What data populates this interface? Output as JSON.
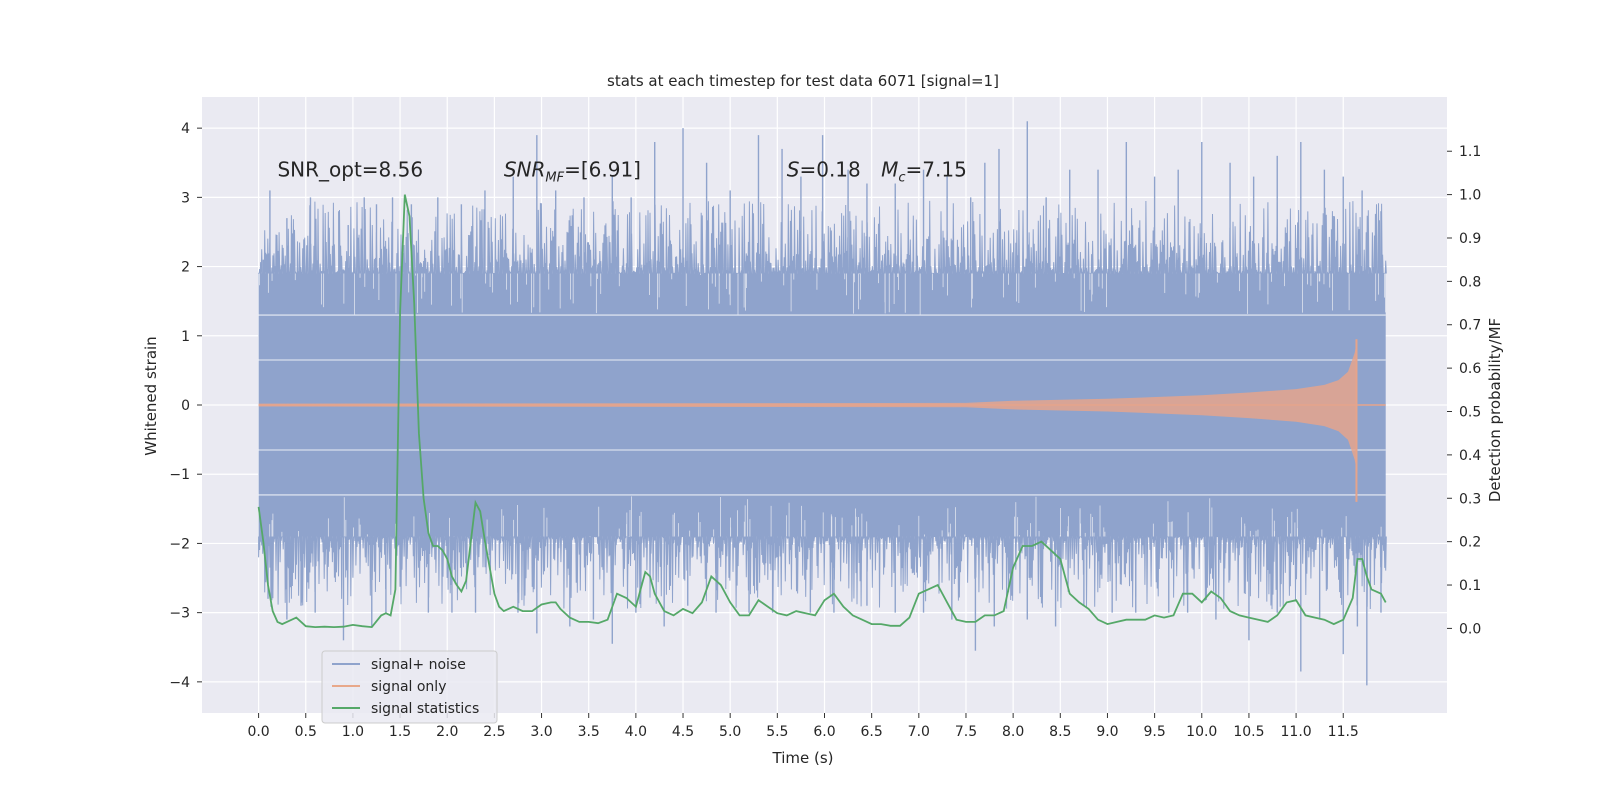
{
  "chart_data": {
    "type": "line",
    "title": "stats at each timestep for test data 6071 [signal=1]",
    "xlabel": "Time (s)",
    "ylabel_left": "Whitened strain",
    "ylabel_right": "Detection probability/MF",
    "xlim": [
      -0.6,
      12.6
    ],
    "ylim_left": [
      -4.45,
      4.45
    ],
    "ylim_right": [
      -0.195,
      1.225
    ],
    "x_ticks": [
      0.0,
      0.5,
      1.0,
      1.5,
      2.0,
      2.5,
      3.0,
      3.5,
      4.0,
      4.5,
      5.0,
      5.5,
      6.0,
      6.5,
      7.0,
      7.5,
      8.0,
      8.5,
      9.0,
      9.5,
      10.0,
      10.5,
      11.0,
      11.5
    ],
    "x_tick_labels": [
      "0.0",
      "0.5",
      "1.0",
      "1.5",
      "2.0",
      "2.5",
      "3.0",
      "3.5",
      "4.0",
      "4.5",
      "5.0",
      "5.5",
      "6.0",
      "6.5",
      "7.0",
      "7.5",
      "8.0",
      "8.5",
      "9.0",
      "9.5",
      "10.0",
      "10.5",
      "11.0",
      "11.5"
    ],
    "y_left_ticks": [
      -4,
      -3,
      -2,
      -1,
      0,
      1,
      2,
      3,
      4
    ],
    "y_left_tick_labels": [
      "−4",
      "−3",
      "−2",
      "−1",
      "0",
      "1",
      "2",
      "3",
      "4"
    ],
    "y_right_ticks": [
      0.0,
      0.1,
      0.2,
      0.3,
      0.4,
      0.5,
      0.6,
      0.7,
      0.8,
      0.9,
      1.0,
      1.1
    ],
    "y_right_tick_labels": [
      "0.0",
      "0.1",
      "0.2",
      "0.3",
      "0.4",
      "0.5",
      "0.6",
      "0.7",
      "0.8",
      "0.9",
      "1.0",
      "1.1"
    ],
    "grid": true,
    "legend_position": "lower-left",
    "annotations": [
      {
        "text": "SNR_opt=8.56",
        "x": 0.2,
        "y": 3.3
      },
      {
        "text": "SNR_MF=[6.91]",
        "x": 2.6,
        "y": 3.3
      },
      {
        "text": "S=0.18",
        "x": 5.6,
        "y": 3.3
      },
      {
        "text": "M_c=7.15",
        "x": 6.6,
        "y": 3.3
      }
    ],
    "series": [
      {
        "name": "signal+ noise",
        "axis": "left",
        "color": "#8fa3cc",
        "x_range": [
          0.0,
          11.95
        ],
        "band_core": [
          -1.3,
          1.3
        ],
        "band_body": [
          -1.9,
          1.9
        ],
        "spike_peaks_upper": [
          [
            0.05,
            2.1
          ],
          [
            0.12,
            3.1
          ],
          [
            0.3,
            2.7
          ],
          [
            0.55,
            3.0
          ],
          [
            0.85,
            2.8
          ],
          [
            0.95,
            2.6
          ],
          [
            1.12,
            3.0
          ],
          [
            1.25,
            2.9
          ],
          [
            1.42,
            3.0
          ],
          [
            1.62,
            2.9
          ],
          [
            1.9,
            3.0
          ],
          [
            2.15,
            2.9
          ],
          [
            2.4,
            3.1
          ],
          [
            2.7,
            3.3
          ],
          [
            2.95,
            3.9
          ],
          [
            3.15,
            3.1
          ],
          [
            3.45,
            3.0
          ],
          [
            3.75,
            3.3
          ],
          [
            3.95,
            3.0
          ],
          [
            4.2,
            3.8
          ],
          [
            4.5,
            4.0
          ],
          [
            4.75,
            3.5
          ],
          [
            5.0,
            3.1
          ],
          [
            5.3,
            3.9
          ],
          [
            5.55,
            3.7
          ],
          [
            5.75,
            3.3
          ],
          [
            5.98,
            3.9
          ],
          [
            6.25,
            3.4
          ],
          [
            6.45,
            3.2
          ],
          [
            6.75,
            3.2
          ],
          [
            7.05,
            3.4
          ],
          [
            7.3,
            3.3
          ],
          [
            7.55,
            3.0
          ],
          [
            7.7,
            3.5
          ],
          [
            7.85,
            3.7
          ],
          [
            8.15,
            4.1
          ],
          [
            8.35,
            3.0
          ],
          [
            8.6,
            3.4
          ],
          [
            8.9,
            3.4
          ],
          [
            9.2,
            3.8
          ],
          [
            9.5,
            3.3
          ],
          [
            9.75,
            3.4
          ],
          [
            10.0,
            3.8
          ],
          [
            10.3,
            3.5
          ],
          [
            10.55,
            3.3
          ],
          [
            10.8,
            3.6
          ],
          [
            11.05,
            3.8
          ],
          [
            11.3,
            3.4
          ],
          [
            11.5,
            3.3
          ],
          [
            11.7,
            3.1
          ],
          [
            11.9,
            2.8
          ]
        ],
        "spike_peaks_lower": [
          [
            0.1,
            -2.8
          ],
          [
            0.3,
            -3.1
          ],
          [
            0.45,
            -2.9
          ],
          [
            0.6,
            -3.0
          ],
          [
            0.9,
            -3.4
          ],
          [
            1.2,
            -3.2
          ],
          [
            1.35,
            -3.0
          ],
          [
            1.8,
            -3.0
          ],
          [
            2.05,
            -3.0
          ],
          [
            2.3,
            -3.0
          ],
          [
            2.75,
            -3.0
          ],
          [
            2.95,
            -3.3
          ],
          [
            3.3,
            -3.2
          ],
          [
            3.55,
            -3.1
          ],
          [
            3.75,
            -3.45
          ],
          [
            4.0,
            -3.0
          ],
          [
            4.3,
            -3.2
          ],
          [
            4.55,
            -2.9
          ],
          [
            4.85,
            -3.0
          ],
          [
            5.2,
            -3.0
          ],
          [
            5.45,
            -3.0
          ],
          [
            5.85,
            -3.0
          ],
          [
            6.1,
            -3.0
          ],
          [
            6.45,
            -2.9
          ],
          [
            6.75,
            -3.0
          ],
          [
            7.05,
            -3.0
          ],
          [
            7.35,
            -3.1
          ],
          [
            7.6,
            -3.55
          ],
          [
            7.8,
            -3.2
          ],
          [
            8.15,
            -3.1
          ],
          [
            8.45,
            -3.2
          ],
          [
            8.75,
            -2.9
          ],
          [
            9.05,
            -3.0
          ],
          [
            9.3,
            -3.0
          ],
          [
            9.65,
            -3.0
          ],
          [
            9.85,
            -3.0
          ],
          [
            10.15,
            -3.1
          ],
          [
            10.5,
            -3.4
          ],
          [
            10.8,
            -3.0
          ],
          [
            11.05,
            -3.85
          ],
          [
            11.25,
            -3.1
          ],
          [
            11.5,
            -3.6
          ],
          [
            11.65,
            -3.2
          ],
          [
            11.75,
            -4.05
          ],
          [
            11.9,
            -3.0
          ]
        ]
      },
      {
        "name": "signal only",
        "axis": "left",
        "color": "#dd8452",
        "x_range": [
          0.0,
          11.65
        ],
        "amplitude": [
          [
            0.0,
            0.02
          ],
          [
            7.5,
            0.03
          ],
          [
            8.0,
            0.06
          ],
          [
            9.0,
            0.09
          ],
          [
            10.0,
            0.14
          ],
          [
            10.5,
            0.18
          ],
          [
            11.0,
            0.23
          ],
          [
            11.3,
            0.29
          ],
          [
            11.45,
            0.36
          ],
          [
            11.55,
            0.48
          ],
          [
            11.62,
            0.75
          ],
          [
            11.65,
            0.95
          ]
        ],
        "lower_amplitude_end": -1.4
      },
      {
        "name": "signal statistics",
        "axis": "right",
        "color": "#55a868",
        "x": [
          0.0,
          0.05,
          0.1,
          0.15,
          0.2,
          0.25,
          0.3,
          0.4,
          0.5,
          0.6,
          0.7,
          0.8,
          0.9,
          1.0,
          1.1,
          1.2,
          1.3,
          1.35,
          1.4,
          1.45,
          1.5,
          1.55,
          1.6,
          1.65,
          1.7,
          1.75,
          1.8,
          1.85,
          1.9,
          1.95,
          2.0,
          2.05,
          2.1,
          2.15,
          2.2,
          2.25,
          2.3,
          2.35,
          2.4,
          2.45,
          2.5,
          2.55,
          2.6,
          2.65,
          2.7,
          2.8,
          2.9,
          3.0,
          3.1,
          3.15,
          3.2,
          3.3,
          3.4,
          3.5,
          3.6,
          3.7,
          3.8,
          3.9,
          4.0,
          4.1,
          4.15,
          4.2,
          4.3,
          4.4,
          4.5,
          4.6,
          4.7,
          4.8,
          4.9,
          5.0,
          5.1,
          5.2,
          5.3,
          5.4,
          5.5,
          5.6,
          5.7,
          5.8,
          5.9,
          6.0,
          6.1,
          6.2,
          6.3,
          6.4,
          6.5,
          6.6,
          6.7,
          6.8,
          6.9,
          7.0,
          7.1,
          7.2,
          7.3,
          7.4,
          7.5,
          7.6,
          7.7,
          7.8,
          7.9,
          8.0,
          8.1,
          8.2,
          8.3,
          8.4,
          8.5,
          8.6,
          8.7,
          8.8,
          8.9,
          9.0,
          9.1,
          9.2,
          9.3,
          9.4,
          9.5,
          9.6,
          9.7,
          9.8,
          9.9,
          10.0,
          10.1,
          10.2,
          10.3,
          10.4,
          10.5,
          10.6,
          10.7,
          10.8,
          10.9,
          11.0,
          11.1,
          11.2,
          11.3,
          11.4,
          11.5,
          11.6,
          11.65,
          11.7,
          11.75,
          11.8,
          11.9,
          11.95
        ],
        "values": [
          0.28,
          0.2,
          0.1,
          0.04,
          0.015,
          0.01,
          0.015,
          0.025,
          0.005,
          0.003,
          0.004,
          0.003,
          0.004,
          0.008,
          0.005,
          0.003,
          0.03,
          0.035,
          0.03,
          0.09,
          0.73,
          1.0,
          0.95,
          0.75,
          0.45,
          0.3,
          0.22,
          0.19,
          0.19,
          0.18,
          0.16,
          0.12,
          0.1,
          0.085,
          0.11,
          0.2,
          0.29,
          0.27,
          0.2,
          0.14,
          0.08,
          0.05,
          0.04,
          0.045,
          0.05,
          0.04,
          0.04,
          0.055,
          0.06,
          0.06,
          0.045,
          0.025,
          0.015,
          0.015,
          0.012,
          0.02,
          0.08,
          0.07,
          0.05,
          0.13,
          0.12,
          0.08,
          0.04,
          0.03,
          0.045,
          0.035,
          0.06,
          0.12,
          0.1,
          0.06,
          0.03,
          0.03,
          0.065,
          0.05,
          0.035,
          0.03,
          0.04,
          0.035,
          0.03,
          0.065,
          0.08,
          0.05,
          0.03,
          0.02,
          0.01,
          0.01,
          0.006,
          0.006,
          0.025,
          0.08,
          0.09,
          0.1,
          0.06,
          0.02,
          0.015,
          0.015,
          0.03,
          0.03,
          0.04,
          0.14,
          0.19,
          0.19,
          0.2,
          0.18,
          0.16,
          0.08,
          0.06,
          0.045,
          0.02,
          0.01,
          0.015,
          0.02,
          0.02,
          0.02,
          0.03,
          0.025,
          0.03,
          0.08,
          0.08,
          0.06,
          0.085,
          0.07,
          0.04,
          0.03,
          0.025,
          0.02,
          0.015,
          0.03,
          0.06,
          0.065,
          0.03,
          0.025,
          0.02,
          0.01,
          0.02,
          0.07,
          0.16,
          0.16,
          0.12,
          0.09,
          0.08,
          0.06
        ]
      }
    ]
  }
}
